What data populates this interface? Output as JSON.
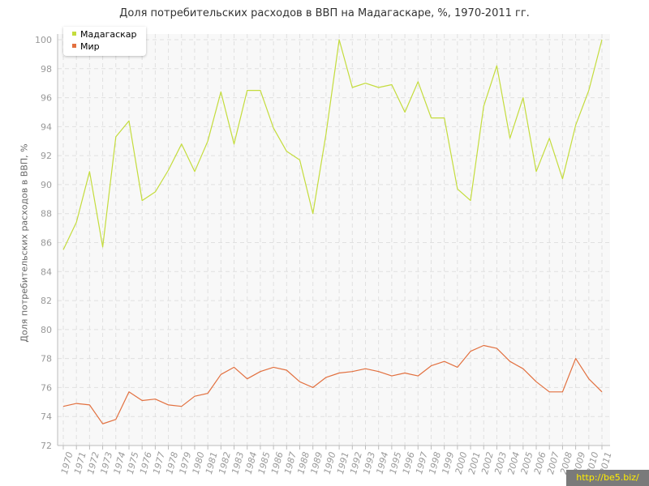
{
  "title": "Доля потребительских расходов в ВВП на Мадагаскаре, %, 1970-2011 гг.",
  "watermark": "http://be5.biz/",
  "colors": {
    "background": "#f8f8f8",
    "grid": "#e0e0e0",
    "axis": "#bbbbbb",
    "tick_text": "#999999"
  },
  "chart_data": {
    "type": "line",
    "title": "Доля потребительских расходов в ВВП на Мадагаскаре, %, 1970-2011 гг.",
    "xlabel": "",
    "ylabel": "Доля потребительских расходов в ВВП, %",
    "ylim": [
      72,
      100
    ],
    "yticks": [
      72,
      74,
      76,
      78,
      80,
      82,
      84,
      86,
      88,
      90,
      92,
      94,
      96,
      98,
      100
    ],
    "grid": true,
    "legend_position": "top-left",
    "x": [
      1970,
      1971,
      1972,
      1973,
      1974,
      1975,
      1976,
      1977,
      1978,
      1979,
      1980,
      1981,
      1982,
      1983,
      1984,
      1985,
      1986,
      1987,
      1988,
      1989,
      1990,
      1991,
      1992,
      1993,
      1994,
      1995,
      1996,
      1997,
      1998,
      1999,
      2000,
      2001,
      2002,
      2003,
      2004,
      2005,
      2006,
      2007,
      2008,
      2009,
      2010,
      2011
    ],
    "series": [
      {
        "name": "Мадагаскар",
        "color": "#c4dc3c",
        "values": [
          85.5,
          87.4,
          90.9,
          85.7,
          93.3,
          94.4,
          88.9,
          89.5,
          91.0,
          92.8,
          90.9,
          93.0,
          96.4,
          92.8,
          96.5,
          96.5,
          93.9,
          92.3,
          91.7,
          88.0,
          93.5,
          100.0,
          96.7,
          97.0,
          96.7,
          96.9,
          95.0,
          97.1,
          94.6,
          94.6,
          89.7,
          88.9,
          95.4,
          98.2,
          93.2,
          96.0,
          90.9,
          93.2,
          90.4,
          94.1,
          96.5,
          100.0
        ]
      },
      {
        "name": "Мир",
        "color": "#e2703f",
        "values": [
          74.7,
          74.9,
          74.8,
          73.5,
          73.8,
          75.7,
          75.1,
          75.2,
          74.8,
          74.7,
          75.4,
          75.6,
          76.9,
          77.4,
          76.6,
          77.1,
          77.4,
          77.2,
          76.4,
          76.0,
          76.7,
          77.0,
          77.1,
          77.3,
          77.1,
          76.8,
          77.0,
          76.8,
          77.5,
          77.8,
          77.4,
          78.5,
          78.9,
          78.7,
          77.8,
          77.3,
          76.4,
          75.7,
          75.7,
          78.0,
          76.6,
          75.7
        ]
      }
    ]
  }
}
